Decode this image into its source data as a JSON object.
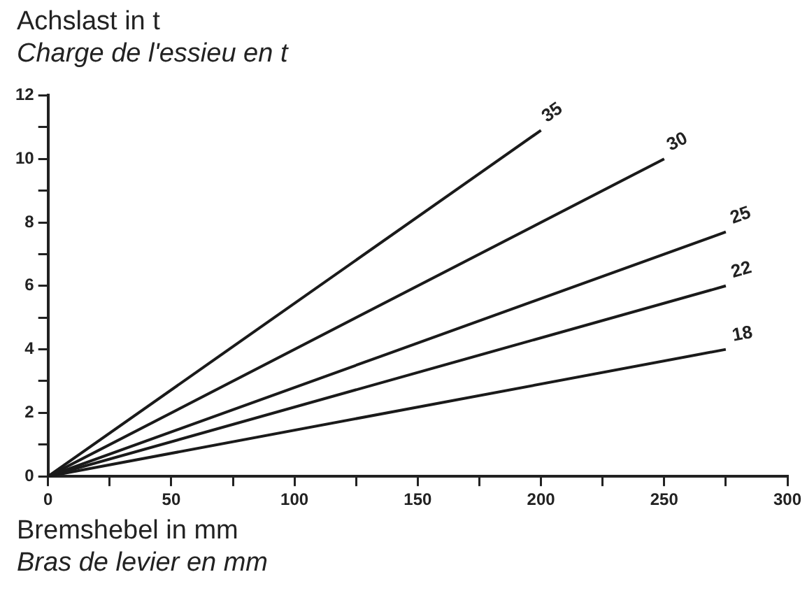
{
  "chart_data": {
    "type": "line",
    "ylabel": "Achslast in t\nCharge de l'essieu en t",
    "xlabel": "Bremshebel in mm\nBras de levier en mm",
    "series": [
      {
        "name": "35",
        "color": "#1a1a1a",
        "x": [
          0,
          200
        ],
        "values": [
          0,
          10.9
        ]
      },
      {
        "name": "30",
        "color": "#1a1a1a",
        "x": [
          0,
          250
        ],
        "values": [
          0,
          10
        ]
      },
      {
        "name": "25",
        "color": "#1a1a1a",
        "x": [
          0,
          275
        ],
        "values": [
          0,
          7.7
        ]
      },
      {
        "name": "22",
        "color": "#1a1a1a",
        "x": [
          0,
          275
        ],
        "values": [
          0,
          6
        ]
      },
      {
        "name": "18",
        "color": "#1a1a1a",
        "x": [
          0,
          275
        ],
        "values": [
          0,
          4
        ]
      }
    ],
    "xlim": [
      0,
      300
    ],
    "ylim": [
      0,
      12
    ],
    "xticks": [
      0,
      {
        "value": 25,
        "label": null
      },
      50,
      {
        "value": 75,
        "label": null
      },
      100,
      {
        "value": 125,
        "label": null
      },
      150,
      {
        "value": 175,
        "label": null
      },
      200,
      {
        "value": 225,
        "label": null
      },
      250,
      {
        "value": 275,
        "label": null
      },
      300
    ],
    "yticks": [
      0,
      {
        "value": 1,
        "label": null
      },
      2,
      {
        "value": 3,
        "label": null
      },
      4,
      {
        "value": 5,
        "label": null
      },
      6,
      {
        "value": 7,
        "label": null
      },
      8,
      {
        "value": 9,
        "label": null
      },
      10,
      {
        "value": 11,
        "label": null
      },
      12
    ],
    "grid": false,
    "legend": false,
    "marker": "none",
    "line_style": "solid"
  }
}
